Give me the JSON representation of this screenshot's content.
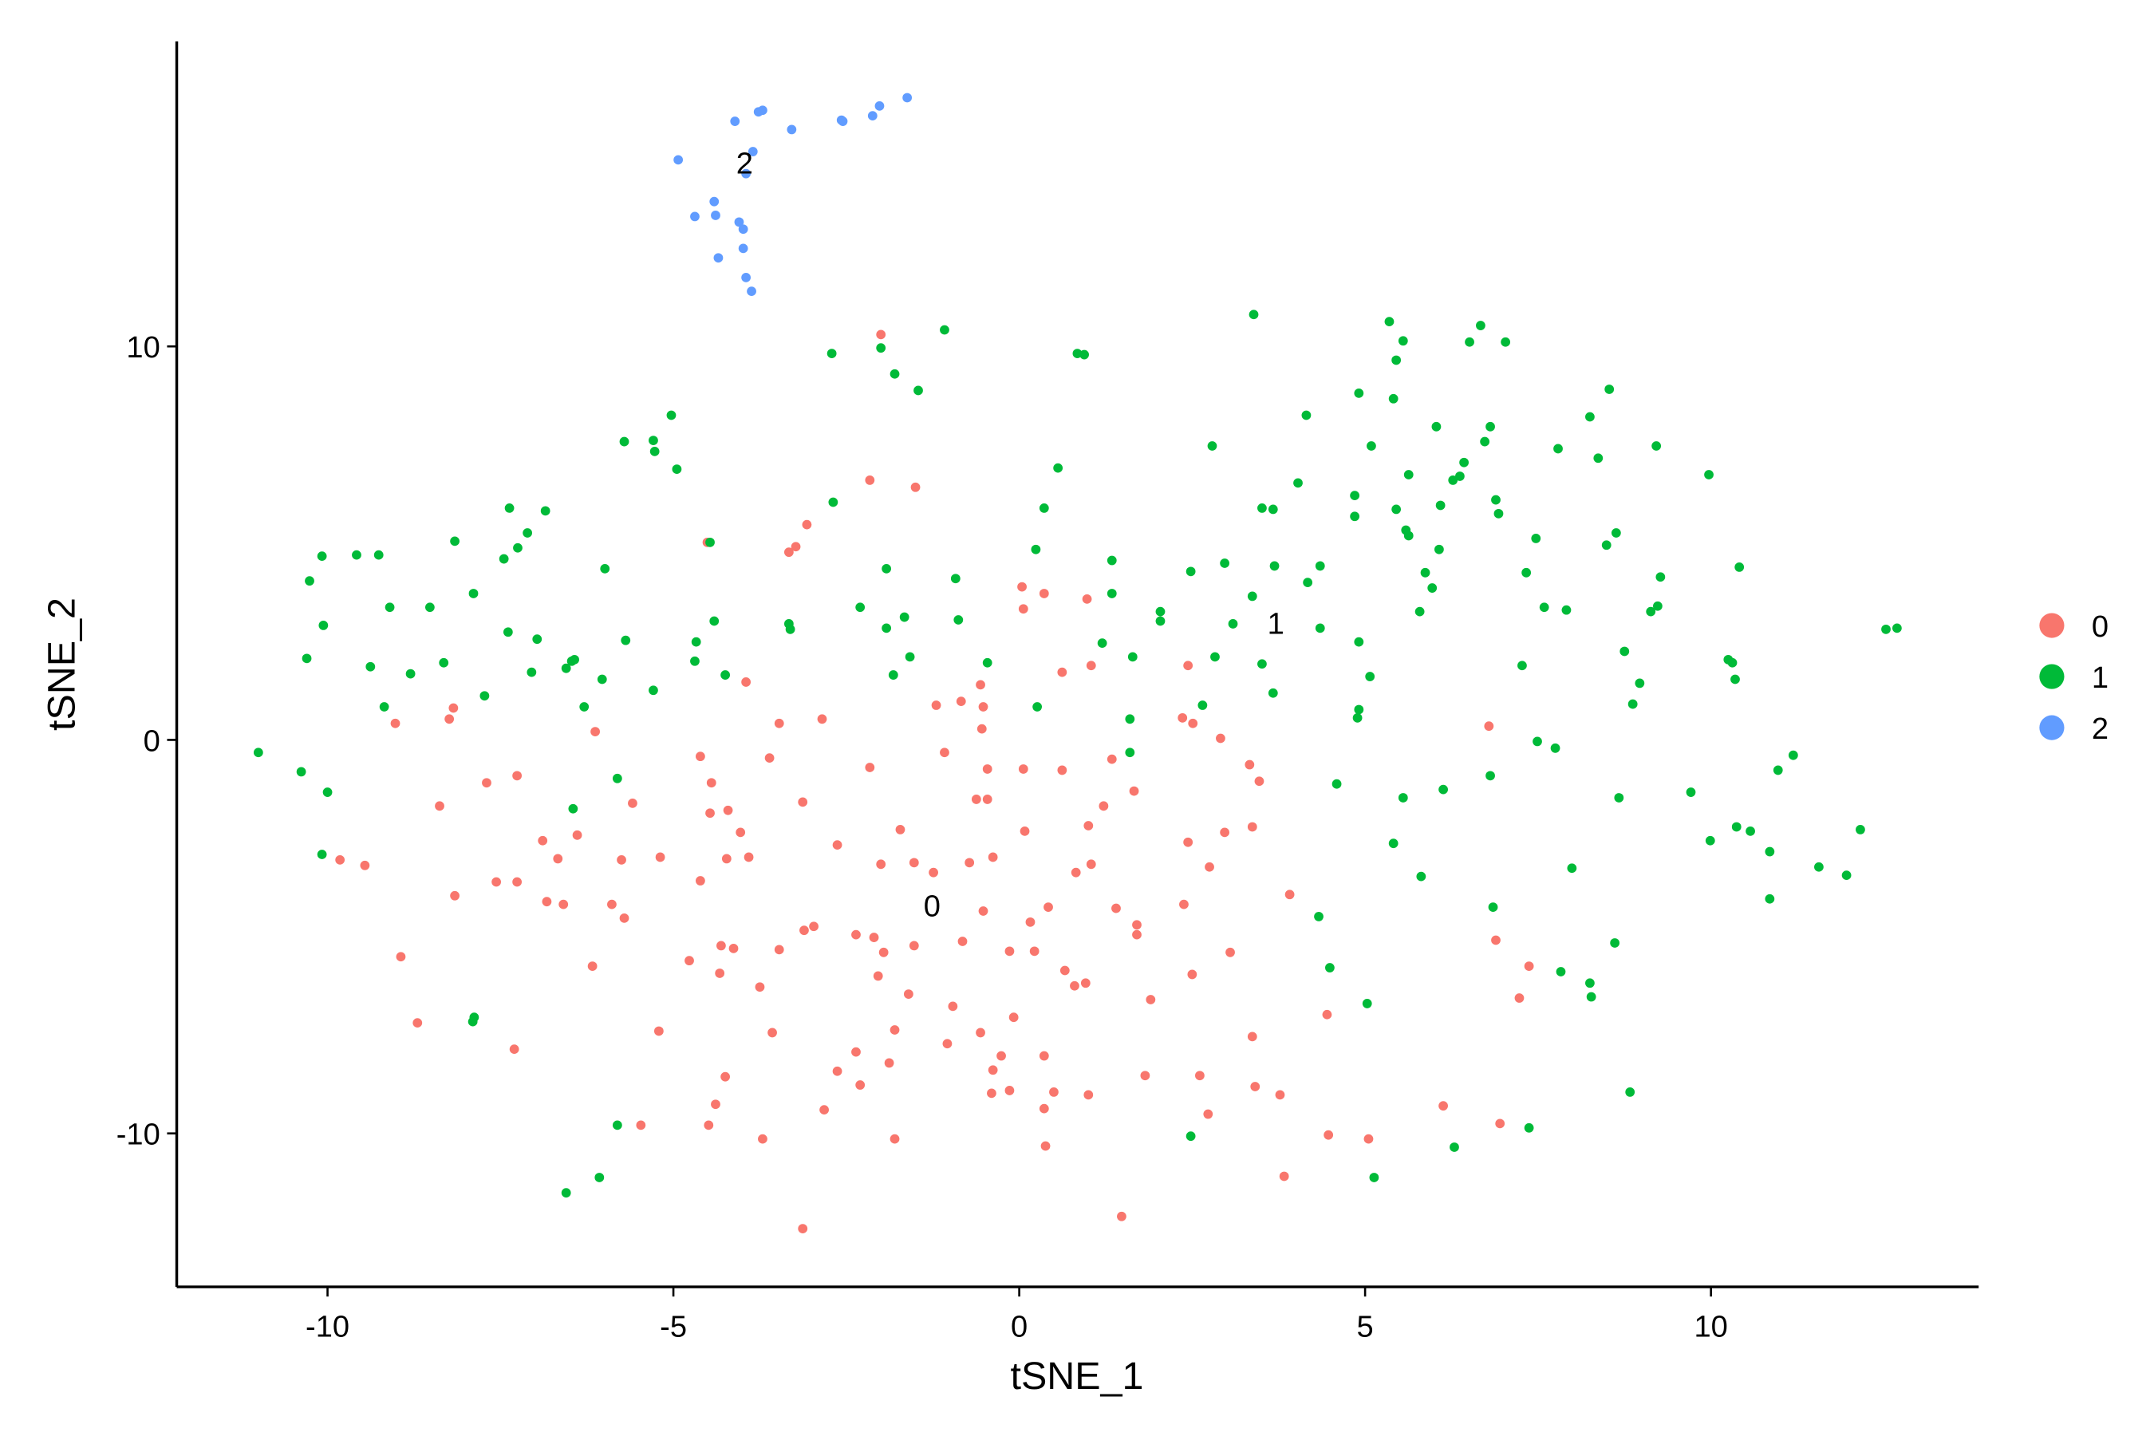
{
  "chart_data": {
    "type": "scatter",
    "x_label": "tSNE_1",
    "y_label": "tSNE_2",
    "xlim": [
      -12.18,
      13.87
    ],
    "ylim": [
      -13.9,
      17.75
    ],
    "xticks": [
      -10,
      -5,
      0,
      5,
      10
    ],
    "yticks": [
      -10,
      0,
      10
    ],
    "grid": false,
    "legend_position": "right",
    "annotations": [
      {
        "text": "0",
        "x": -1.26,
        "y": -4.2
      },
      {
        "text": "1",
        "x": 3.71,
        "y": 2.98
      },
      {
        "text": "2",
        "x": -3.97,
        "y": 14.67
      }
    ],
    "series": [
      {
        "name": "0",
        "color": "#F8766D",
        "x": [
          -2.0,
          -2.16,
          -1.5,
          -3.07,
          -3.23,
          -3.33,
          -4.51,
          -9.02,
          -8.18,
          -8.24,
          -3.95,
          -2.85,
          -3.47,
          -6.13,
          -4.61,
          -3.61,
          -4.45,
          -2.16,
          -3.13,
          -4.21,
          -4.47,
          -5.59,
          -6.39,
          -6.89,
          -6.67,
          -8.38,
          -7.7,
          -7.26,
          -9.82,
          -9.46,
          -8.16,
          -7.56,
          -7.26,
          -6.83,
          -6.59,
          -5.89,
          -5.71,
          -6.17,
          -5.75,
          -5.19,
          -4.61,
          -4.23,
          -3.91,
          -4.03,
          -8.94,
          -8.7,
          -7.3,
          -5.21,
          -4.77,
          -4.31,
          -4.13,
          -4.33,
          -3.47,
          -3.75,
          -3.57,
          -4.25,
          -4.39,
          -4.49,
          -5.47,
          -3.71,
          -3.13,
          -2.82,
          -2.63,
          -2.36,
          -2.3,
          -1.8,
          -1.88,
          -1.8,
          -2.04,
          -1.6,
          -0.96,
          -1.04,
          -0.56,
          -0.08,
          -0.4,
          0.36,
          0.36,
          0.38,
          1.0,
          1.48,
          1.82,
          2.61,
          2.73,
          3.37,
          3.41,
          3.77,
          3.83,
          4.47,
          5.05,
          6.13,
          6.95,
          7.23,
          7.37,
          6.89,
          6.79,
          4.45,
          3.91,
          3.05,
          2.5,
          1.9,
          2.38,
          2.44,
          2.97,
          3.37,
          2.75,
          3.33,
          3.47,
          2.91,
          2.36,
          2.51,
          2.44,
          1.04,
          0.62,
          0.36,
          0.06,
          0.98,
          -0.56,
          -0.84,
          -1.2,
          -0.52,
          -0.54,
          -1.08,
          -0.46,
          0.06,
          0.62,
          1.34,
          1.66,
          1.22,
          1.0,
          0.08,
          -0.46,
          -0.62,
          -1.72,
          -2.63,
          -2.0,
          -1.52,
          -1.24,
          -0.72,
          -0.38,
          0.82,
          1.04,
          1.4,
          1.7,
          1.7,
          0.42,
          0.16,
          -0.14,
          0.22,
          0.66,
          0.8,
          0.96,
          -0.52,
          -0.82,
          -1.52,
          -2.1,
          -2.36,
          -2.97,
          -3.11,
          -1.96,
          -0.26,
          -0.38,
          -0.14,
          0.5,
          0.04
        ],
        "values": [
          10.3,
          6.6,
          6.42,
          5.47,
          4.91,
          4.77,
          5.02,
          0.42,
          0.81,
          0.53,
          1.47,
          0.53,
          0.42,
          0.21,
          -0.42,
          -0.46,
          -1.09,
          -0.7,
          -1.58,
          -1.79,
          -1.86,
          -1.61,
          -2.42,
          -2.56,
          -3.02,
          -1.68,
          -1.09,
          -0.91,
          -3.05,
          -3.19,
          -3.96,
          -3.61,
          -3.61,
          -4.11,
          -4.18,
          -4.18,
          -4.53,
          -5.75,
          -3.05,
          -2.98,
          -3.58,
          -3.02,
          -2.98,
          -2.35,
          -5.51,
          -7.19,
          -7.86,
          -7.4,
          -5.61,
          -5.23,
          -5.3,
          -5.93,
          -5.33,
          -6.28,
          -7.44,
          -8.56,
          -9.26,
          -9.79,
          -9.79,
          -10.14,
          -12.42,
          -9.4,
          -8.42,
          -7.93,
          -8.77,
          -10.14,
          -8.21,
          -7.37,
          -6.0,
          -6.46,
          -6.77,
          -7.72,
          -7.44,
          -7.05,
          -8.98,
          -8.03,
          -9.37,
          -10.32,
          -9.02,
          -12.11,
          -8.53,
          -8.53,
          -9.51,
          -7.54,
          -8.81,
          -9.02,
          -11.09,
          -10.04,
          -10.14,
          -9.3,
          -9.75,
          -6.56,
          -5.75,
          -5.09,
          0.35,
          -6.98,
          -3.93,
          -5.4,
          -5.96,
          -6.6,
          -4.18,
          -2.6,
          -2.35,
          -2.21,
          -3.23,
          -0.63,
          -1.05,
          0.04,
          0.56,
          0.42,
          1.89,
          1.89,
          1.72,
          3.72,
          3.33,
          3.58,
          1.4,
          0.98,
          0.88,
          0.84,
          0.28,
          -0.32,
          -0.74,
          -0.74,
          -0.77,
          -0.49,
          -1.3,
          -1.68,
          -2.18,
          -2.32,
          -1.51,
          -1.51,
          -2.28,
          -2.67,
          -3.16,
          -3.12,
          -3.37,
          -3.12,
          -2.98,
          -3.37,
          -3.16,
          -4.28,
          -4.7,
          -4.95,
          -4.25,
          -4.63,
          -5.37,
          -5.37,
          -5.86,
          -6.25,
          -6.18,
          -4.35,
          -5.12,
          -5.23,
          -5.02,
          -4.95,
          -4.74,
          -4.84,
          -5.4,
          -8.03,
          -8.39,
          -8.91,
          -8.95,
          3.89
        ]
      },
      {
        "name": "1",
        "color": "#00BA38",
        "x": [
          -2.0,
          -1.08,
          -2.71,
          -1.8,
          -1.46,
          0.84,
          0.94,
          3.39,
          5.35,
          5.55,
          5.45,
          6.51,
          6.67,
          7.03,
          -5.03,
          -5.29,
          -5.27,
          -5.71,
          -4.95,
          -2.69,
          0.56,
          0.36,
          2.79,
          4.15,
          4.91,
          5.09,
          5.41,
          6.03,
          6.81,
          6.73,
          6.43,
          6.27,
          6.37,
          5.63,
          5.45,
          4.85,
          4.85,
          4.03,
          3.51,
          3.67,
          6.09,
          6.89,
          6.93,
          7.79,
          8.25,
          8.53,
          8.37,
          9.21,
          9.97,
          7.47,
          8.63,
          8.49,
          5.59,
          5.63,
          6.07,
          5.87,
          5.97,
          5.79,
          7.33,
          7.59,
          7.91,
          9.27,
          9.23,
          9.13,
          10.41,
          8.75,
          10.25,
          10.31,
          10.35,
          12.53,
          12.69,
          8.97,
          8.87,
          7.27,
          7.49,
          7.75,
          6.81,
          6.13,
          5.55,
          5.41,
          5.81,
          8.67,
          9.71,
          9.99,
          10.37,
          10.57,
          10.85,
          11.19,
          10.97,
          11.56,
          11.96,
          12.16,
          10.85,
          7.99,
          6.85,
          8.61,
          7.83,
          8.25,
          8.27,
          8.83,
          7.37,
          6.29,
          5.13,
          2.48,
          5.03,
          4.49,
          4.33,
          4.59,
          4.91,
          4.89,
          5.07,
          4.91,
          4.35,
          3.67,
          3.51,
          4.17,
          4.35,
          3.69,
          3.37,
          2.97,
          2.48,
          3.09,
          2.83,
          2.65,
          2.04,
          2.04,
          1.64,
          1.2,
          1.34,
          1.34,
          0.24,
          0.26,
          1.6,
          1.6,
          -0.46,
          -0.88,
          -0.92,
          -1.92,
          -2.3,
          -1.66,
          -1.92,
          -1.58,
          -1.82,
          -3.33,
          -3.31,
          -4.47,
          -4.41,
          -4.67,
          -4.69,
          -4.25,
          -5.29,
          -6.03,
          -5.69,
          -5.99,
          -6.29,
          -6.47,
          -6.43,
          -6.55,
          -6.97,
          -7.05,
          -7.39,
          -7.73,
          -7.89,
          -6.85,
          -7.11,
          -7.25,
          -7.37,
          -7.45,
          -8.16,
          -8.32,
          -8.52,
          -8.8,
          -9.1,
          -9.18,
          -9.38,
          -9.26,
          -9.58,
          -10.08,
          -10.26,
          -10.06,
          -10.3,
          -11.0,
          -10.38,
          -10.0,
          -10.08,
          -7.9,
          -7.88,
          -6.55,
          -6.07,
          -5.81,
          -5.81,
          -6.45
        ],
        "values": [
          9.96,
          10.42,
          9.82,
          9.3,
          8.88,
          9.82,
          9.79,
          10.81,
          10.63,
          10.14,
          9.65,
          10.11,
          10.53,
          10.11,
          8.25,
          7.61,
          7.33,
          7.58,
          6.88,
          6.04,
          6.91,
          5.89,
          7.47,
          8.25,
          8.81,
          7.47,
          8.67,
          7.96,
          7.96,
          7.58,
          7.05,
          6.6,
          6.7,
          6.74,
          5.86,
          6.21,
          5.68,
          6.53,
          5.89,
          5.86,
          5.96,
          6.1,
          5.75,
          7.4,
          8.21,
          8.91,
          7.16,
          7.47,
          6.74,
          5.12,
          5.26,
          4.95,
          5.33,
          5.19,
          4.84,
          4.25,
          3.86,
          3.26,
          4.25,
          3.37,
          3.3,
          4.14,
          3.4,
          3.26,
          4.39,
          2.25,
          2.04,
          1.96,
          1.54,
          2.81,
          2.84,
          1.44,
          0.91,
          1.89,
          -0.04,
          -0.21,
          -0.91,
          -1.26,
          -1.47,
          -2.63,
          -3.47,
          -1.47,
          -1.33,
          -2.56,
          -2.21,
          -2.32,
          -2.84,
          -0.39,
          -0.77,
          -3.23,
          -3.44,
          -2.28,
          -4.04,
          -3.26,
          -4.25,
          -5.16,
          -5.89,
          -6.18,
          -6.53,
          -8.95,
          -9.86,
          -10.35,
          -11.12,
          -10.07,
          -6.7,
          -5.79,
          -4.49,
          -1.12,
          0.77,
          0.56,
          1.61,
          2.49,
          2.84,
          1.19,
          1.93,
          4.0,
          4.42,
          4.42,
          3.65,
          4.49,
          4.28,
          2.95,
          2.11,
          0.88,
          3.26,
          3.02,
          2.11,
          2.46,
          4.56,
          3.72,
          4.84,
          0.84,
          -0.32,
          0.53,
          1.96,
          3.05,
          4.1,
          4.35,
          3.37,
          3.12,
          2.84,
          2.11,
          1.65,
          2.95,
          2.81,
          5.02,
          3.02,
          2.49,
          2.0,
          1.65,
          1.26,
          1.54,
          2.53,
          4.35,
          0.84,
          2.0,
          2.04,
          1.82,
          2.56,
          1.72,
          2.74,
          1.12,
          3.72,
          5.82,
          5.26,
          4.88,
          5.89,
          4.6,
          5.05,
          1.96,
          3.37,
          1.68,
          3.37,
          0.84,
          1.86,
          4.7,
          4.7,
          4.67,
          4.04,
          2.91,
          2.07,
          -0.32,
          -0.81,
          -1.33,
          -2.91,
          -7.16,
          -7.05,
          -11.51,
          -11.12,
          -9.79,
          -0.98,
          -1.75
        ]
      },
      {
        "name": "2",
        "color": "#619CFF",
        "x": [
          -4.93,
          -4.69,
          -4.41,
          -4.39,
          -4.35,
          -4.11,
          -4.05,
          -3.99,
          -3.99,
          -3.95,
          -3.87,
          -3.85,
          -3.77,
          -3.71,
          -3.29,
          -2.57,
          -2.55,
          -2.12,
          -2.02,
          -1.62,
          -3.95
        ],
        "values": [
          14.74,
          13.3,
          13.68,
          13.33,
          12.25,
          15.72,
          13.16,
          12.98,
          12.49,
          11.75,
          11.4,
          14.95,
          15.96,
          16.0,
          15.51,
          15.75,
          15.72,
          15.86,
          16.11,
          16.32,
          14.39
        ]
      }
    ]
  }
}
